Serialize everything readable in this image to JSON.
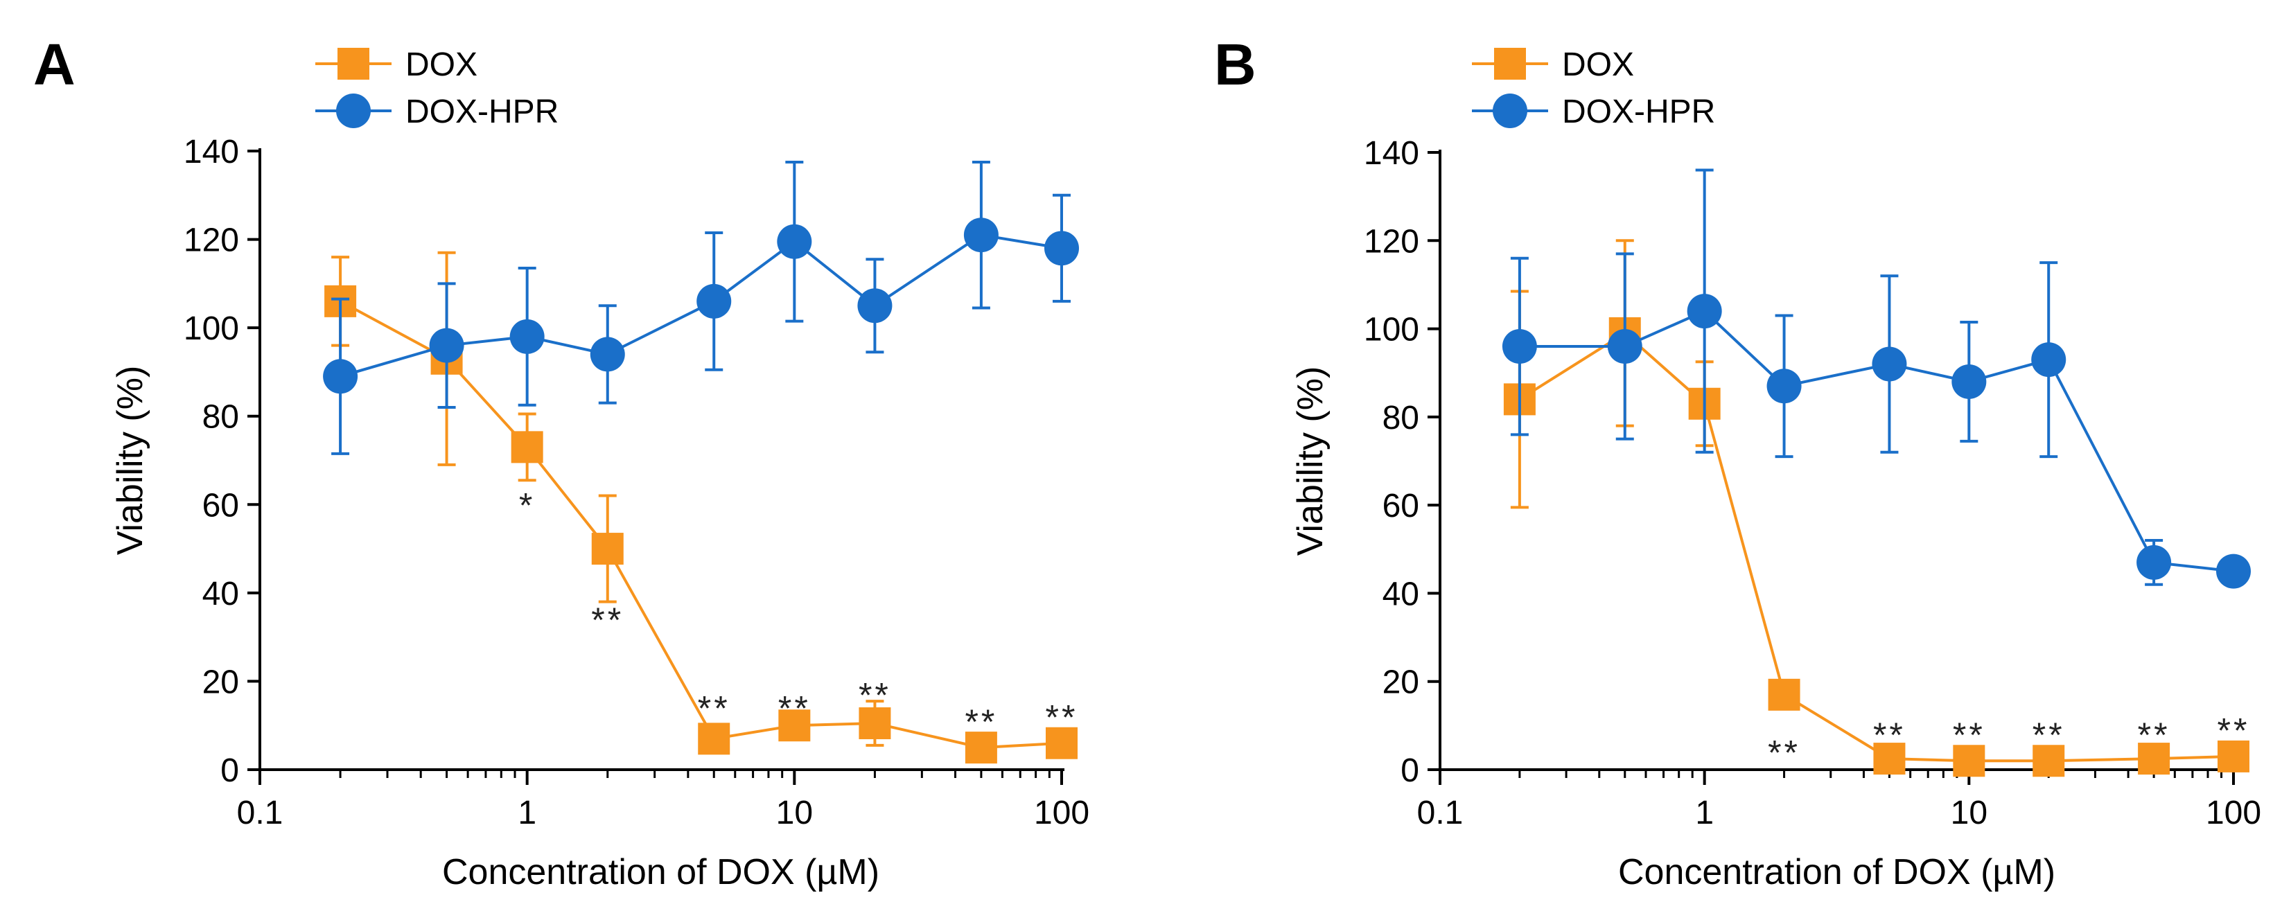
{
  "chart_data": [
    {
      "panel_label": "A",
      "type": "line",
      "xscale": "log",
      "x": [
        0.2,
        0.5,
        1,
        2,
        5,
        10,
        20,
        50,
        100
      ],
      "xlim": [
        0.1,
        100
      ],
      "xticks": [
        "0.1",
        "1",
        "10",
        "100"
      ],
      "xtick_values": [
        0.1,
        1,
        10,
        100
      ],
      "ylim": [
        0,
        140
      ],
      "yticks": [
        "0",
        "20",
        "40",
        "60",
        "80",
        "100",
        "120",
        "140"
      ],
      "ytick_values": [
        0,
        20,
        40,
        60,
        80,
        100,
        120,
        140
      ],
      "xlabel": "Concentration of DOX (µM)",
      "ylabel": "Viability (%)",
      "legend": "top-left",
      "series": [
        {
          "name": "DOX",
          "color": "#F7941D",
          "marker": "square",
          "values": [
            106,
            93,
            73,
            50,
            7,
            10,
            10.5,
            5,
            6
          ],
          "errors": [
            10,
            24,
            7.5,
            12,
            2.5,
            3,
            5,
            2.5,
            2.5
          ]
        },
        {
          "name": "DOX-HPR",
          "color": "#1A6FC9",
          "marker": "circle",
          "values": [
            89,
            96,
            98,
            94,
            106,
            119.5,
            105,
            121,
            118
          ],
          "errors": [
            17.5,
            14,
            15.5,
            11,
            15.5,
            18,
            10.5,
            16.5,
            12
          ]
        }
      ],
      "annotations": [
        {
          "x": 1,
          "y": 60,
          "text": "*"
        },
        {
          "x": 2,
          "y": 34,
          "text": "**"
        },
        {
          "x": 5,
          "y": 14,
          "text": "**"
        },
        {
          "x": 10,
          "y": 14,
          "text": "**"
        },
        {
          "x": 20,
          "y": 17,
          "text": "**"
        },
        {
          "x": 50,
          "y": 11,
          "text": "**"
        },
        {
          "x": 100,
          "y": 12,
          "text": "**"
        }
      ]
    },
    {
      "panel_label": "B",
      "type": "line",
      "xscale": "log",
      "x": [
        0.2,
        0.5,
        1,
        2,
        5,
        10,
        20,
        50,
        100
      ],
      "xlim": [
        0.1,
        100
      ],
      "xticks": [
        "0.1",
        "1",
        "10",
        "100"
      ],
      "xtick_values": [
        0.1,
        1,
        10,
        100
      ],
      "ylim": [
        0,
        140
      ],
      "yticks": [
        "0",
        "20",
        "40",
        "60",
        "80",
        "100",
        "120",
        "140"
      ],
      "ytick_values": [
        0,
        20,
        40,
        60,
        80,
        100,
        120,
        140
      ],
      "xlabel": "Concentration of DOX (µM)",
      "ylabel": "Viability (%)",
      "legend": "top-left",
      "series": [
        {
          "name": "DOX",
          "color": "#F7941D",
          "marker": "square",
          "values": [
            84,
            99,
            83,
            17,
            2.5,
            2,
            2,
            2.5,
            3
          ],
          "errors": [
            24.5,
            21,
            9.5,
            2,
            1,
            1,
            1,
            1,
            1
          ]
        },
        {
          "name": "DOX-HPR",
          "color": "#1A6FC9",
          "marker": "circle",
          "values": [
            96,
            96,
            104,
            87,
            92,
            88,
            93,
            47,
            45
          ],
          "errors": [
            20,
            21,
            32,
            16,
            20,
            13.5,
            22,
            5,
            1
          ]
        }
      ],
      "annotations": [
        {
          "x": 2,
          "y": 4,
          "text": "**"
        },
        {
          "x": 5,
          "y": 8,
          "text": "**"
        },
        {
          "x": 10,
          "y": 8,
          "text": "**"
        },
        {
          "x": 20,
          "y": 8,
          "text": "**"
        },
        {
          "x": 50,
          "y": 8,
          "text": "**"
        },
        {
          "x": 100,
          "y": 9,
          "text": "**"
        }
      ]
    }
  ]
}
